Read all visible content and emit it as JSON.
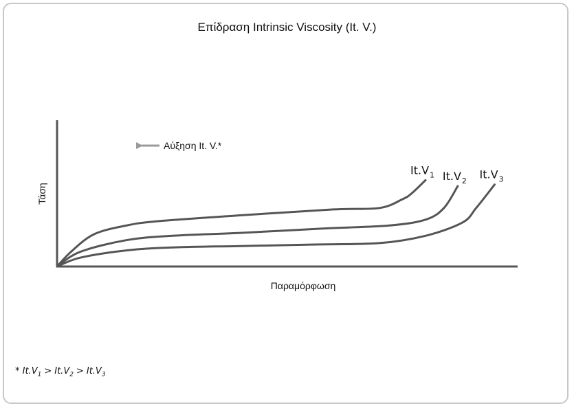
{
  "chart_data": {
    "type": "line",
    "title": "Επίδραση Intrinsic Viscosity  (It. V.)",
    "xlabel": "Παραμόρφωση",
    "ylabel": "Τάση",
    "xlim": [
      0,
      100
    ],
    "ylim": [
      0,
      100
    ],
    "grid": false,
    "annotation": {
      "text": "Αύξηση It. V.*",
      "arrow_direction": "left"
    },
    "series": [
      {
        "name": "It.V₁",
        "label_base": "It.V",
        "label_sub": "1",
        "color": "#555555",
        "x": [
          0,
          3,
          8,
          15,
          22,
          40,
          60,
          70,
          75,
          77,
          80
        ],
        "y": [
          0,
          10,
          22,
          28,
          31,
          35,
          39,
          40,
          46,
          50,
          59
        ]
      },
      {
        "name": "It.V₂",
        "label_base": "It.V",
        "label_sub": "2",
        "color": "#555555",
        "x": [
          0,
          5,
          15,
          25,
          40,
          58,
          72,
          80,
          84,
          87
        ],
        "y": [
          0,
          10,
          18,
          21,
          23,
          26,
          28,
          32,
          40,
          55
        ]
      },
      {
        "name": "It.V₃",
        "label_base": "It.V",
        "label_sub": "3",
        "color": "#555555",
        "x": [
          0,
          5,
          15,
          25,
          40,
          55,
          70,
          80,
          88,
          91,
          95
        ],
        "y": [
          0,
          6,
          11,
          13,
          14,
          15,
          16,
          21,
          30,
          40,
          56
        ]
      }
    ]
  },
  "footnote": {
    "star": "* ",
    "base": "It.V",
    "sub1": "1",
    "sub2": "2",
    "sub3": "3",
    "gt": ">"
  }
}
